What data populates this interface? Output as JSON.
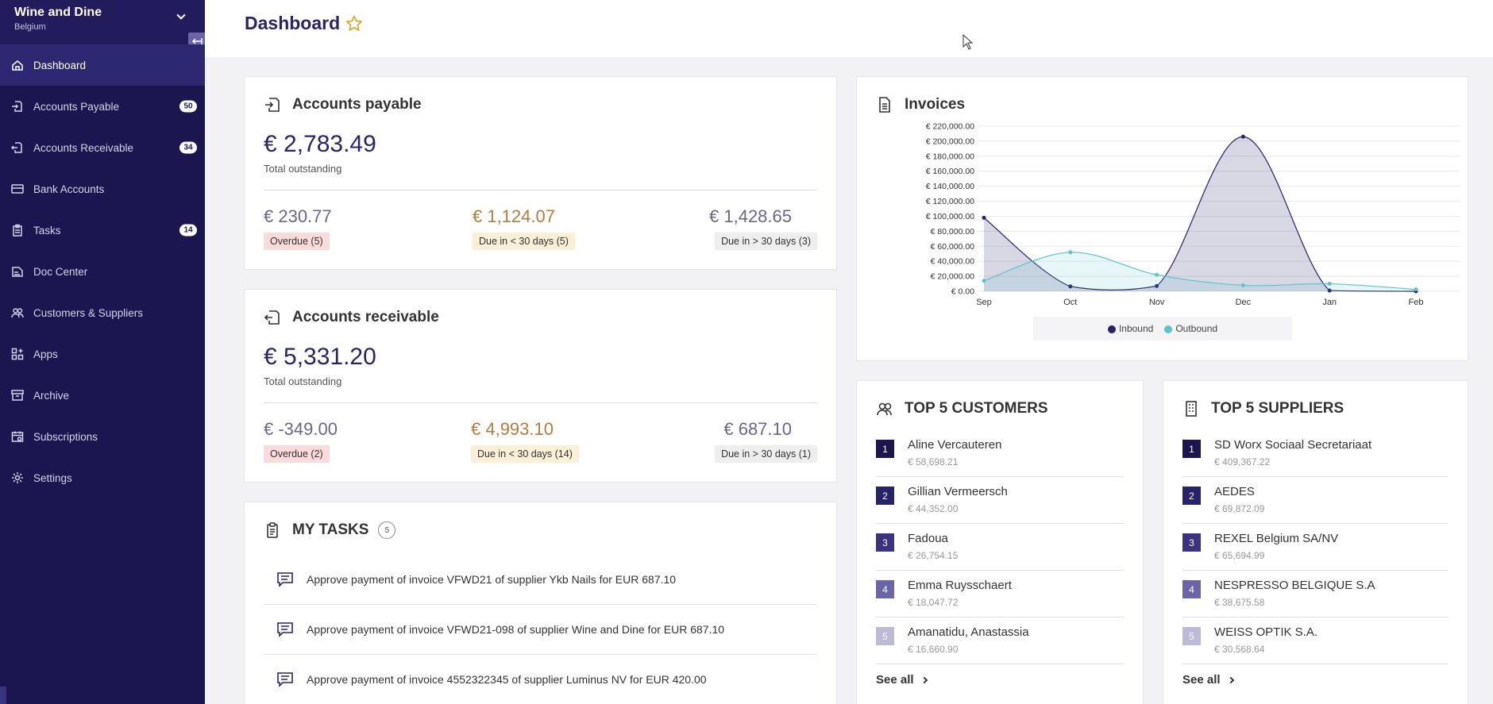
{
  "org": {
    "name": "Wine and Dine",
    "country": "Belgium"
  },
  "nav": [
    {
      "label": "Dashboard",
      "icon": "home-icon",
      "badge": null,
      "active": true
    },
    {
      "label": "Accounts Payable",
      "icon": "payable-icon",
      "badge": "50"
    },
    {
      "label": "Accounts Receivable",
      "icon": "receivable-icon",
      "badge": "34"
    },
    {
      "label": "Bank Accounts",
      "icon": "bank-card-icon",
      "badge": null
    },
    {
      "label": "Tasks",
      "icon": "clipboard-icon",
      "badge": "14"
    },
    {
      "label": "Doc Center",
      "icon": "doc-center-icon",
      "badge": null
    },
    {
      "label": "Customers & Suppliers",
      "icon": "users-icon",
      "badge": null
    },
    {
      "label": "Apps",
      "icon": "apps-icon",
      "badge": null
    },
    {
      "label": "Archive",
      "icon": "archive-icon",
      "badge": null
    },
    {
      "label": "Subscriptions",
      "icon": "subscriptions-icon",
      "badge": null
    },
    {
      "label": "Settings",
      "icon": "gear-icon",
      "badge": null
    }
  ],
  "header": {
    "title": "Dashboard"
  },
  "payable": {
    "title": "Accounts payable",
    "total": "€ 2,783.49",
    "total_label": "Total outstanding",
    "overdue": {
      "amount": "€ 230.77",
      "label": "Overdue (5)"
    },
    "due_soon": {
      "amount": "€ 1,124.07",
      "label": "Due in < 30 days (5)"
    },
    "due_later": {
      "amount": "€ 1,428.65",
      "label": "Due in > 30 days (3)"
    }
  },
  "receivable": {
    "title": "Accounts receivable",
    "total": "€ 5,331.20",
    "total_label": "Total outstanding",
    "overdue": {
      "amount": "€ -349.00",
      "label": "Overdue (2)"
    },
    "due_soon": {
      "amount": "€ 4,993.10",
      "label": "Due in < 30 days (14)"
    },
    "due_later": {
      "amount": "€ 687.10",
      "label": "Due in > 30 days (1)"
    }
  },
  "tasks": {
    "title": "MY TASKS",
    "count": "5",
    "items": [
      "Approve payment of invoice VFWD21 of supplier Ykb Nails for EUR 687.10",
      "Approve payment of invoice VFWD21-098 of supplier Wine and Dine for EUR 687.10",
      "Approve payment of invoice 4552322345 of supplier Luminus NV for EUR 420.00"
    ]
  },
  "invoices": {
    "title": "Invoices"
  },
  "chart_data": {
    "type": "area",
    "title": "Invoices",
    "categories": [
      "Sep",
      "Oct",
      "Nov",
      "Dec",
      "Jan",
      "Feb"
    ],
    "yticks": [
      "€ 0.00",
      "€ 20,000.00",
      "€ 40,000.00",
      "€ 60,000.00",
      "€ 80,000.00",
      "€ 100,000.00",
      "€ 120,000.00",
      "€ 140,000.00",
      "€ 160,000.00",
      "€ 180,000.00",
      "€ 200,000.00",
      "€ 220,000.00"
    ],
    "ylim": [
      0,
      220000
    ],
    "legend_position": "bottom",
    "series": [
      {
        "name": "Inbound",
        "color": "#27226a",
        "values": [
          98000,
          6500,
          7000,
          206000,
          1000,
          0
        ]
      },
      {
        "name": "Outbound",
        "color": "#5ec3c9",
        "values": [
          14000,
          52000,
          22000,
          8000,
          10000,
          2500
        ]
      }
    ]
  },
  "top_customers": {
    "title": "TOP 5 CUSTOMERS",
    "see_all": "See all",
    "items": [
      {
        "rank": "1",
        "name": "Aline Vercauteren",
        "value": "€ 58,698.21"
      },
      {
        "rank": "2",
        "name": "Gillian Vermeersch",
        "value": "€ 44,352.00"
      },
      {
        "rank": "3",
        "name": "Fadoua",
        "value": "€ 26,754.15"
      },
      {
        "rank": "4",
        "name": "Emma Ruysschaert",
        "value": "€ 18,047.72"
      },
      {
        "rank": "5",
        "name": "Amanatidu, Anastassia",
        "value": "€ 16,660.90"
      }
    ]
  },
  "top_suppliers": {
    "title": "TOP 5 SUPPLIERS",
    "see_all": "See all",
    "items": [
      {
        "rank": "1",
        "name": "SD Worx Sociaal Secretariaat",
        "value": "€ 409,367.22"
      },
      {
        "rank": "2",
        "name": "AEDES",
        "value": "€ 69,872.09"
      },
      {
        "rank": "3",
        "name": "REXEL Belgium SA/NV",
        "value": "€ 65,694.99"
      },
      {
        "rank": "4",
        "name": "NESPRESSO BELGIQUE S.A",
        "value": "€ 38,675.58"
      },
      {
        "rank": "5",
        "name": "WEISS OPTIK S.A.",
        "value": "€ 30,568.64"
      }
    ]
  },
  "colors": {
    "sidebar": "#1b1650",
    "accent": "#2a2466",
    "rank": [
      "#1b1650",
      "#27226a",
      "#3a3480",
      "#6a64a8",
      "#bdb9d9"
    ]
  }
}
